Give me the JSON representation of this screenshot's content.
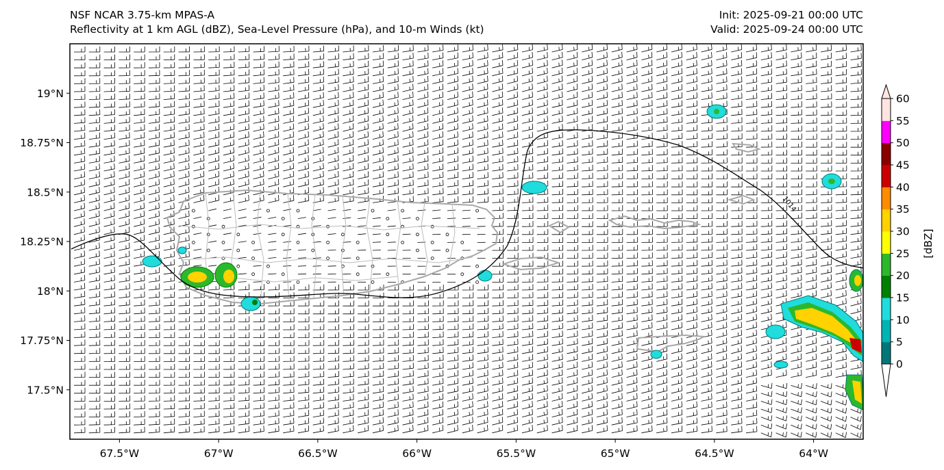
{
  "header": {
    "model": "NSF NCAR 3.75-km MPAS-A",
    "fields": "Reflectivity at 1 km AGL (dBZ), Sea-Level Pressure (hPa), and 10-m Winds (kt)",
    "init": "Init: 2025-09-21 00:00 UTC",
    "valid": "Valid: 2025-09-24 00:00 UTC"
  },
  "map": {
    "extent": {
      "lon_min": -67.75,
      "lon_max": -63.75,
      "lat_min": 17.25,
      "lat_max": 19.25
    },
    "lat_ticks": [
      {
        "value": 19.0,
        "label": "19°N"
      },
      {
        "value": 18.75,
        "label": "18.75°N"
      },
      {
        "value": 18.5,
        "label": "18.5°N"
      },
      {
        "value": 18.25,
        "label": "18.25°N"
      },
      {
        "value": 18.0,
        "label": "18°N"
      },
      {
        "value": 17.75,
        "label": "17.75°N"
      },
      {
        "value": 17.5,
        "label": "17.5°N"
      }
    ],
    "lon_ticks": [
      {
        "value": -67.5,
        "label": "67.5°W"
      },
      {
        "value": -67.0,
        "label": "67°W"
      },
      {
        "value": -66.5,
        "label": "66.5°W"
      },
      {
        "value": -66.0,
        "label": "66°W"
      },
      {
        "value": -65.5,
        "label": "65.5°W"
      },
      {
        "value": -65.0,
        "label": "65°W"
      },
      {
        "value": -64.5,
        "label": "64.5°W"
      },
      {
        "value": -64.0,
        "label": "64°W"
      }
    ],
    "isobar_label": "1014",
    "colorbar": {
      "label": "[dBZ]",
      "ticks": [
        "0",
        "5",
        "10",
        "15",
        "20",
        "25",
        "30",
        "35",
        "40",
        "45",
        "50",
        "55",
        "60"
      ],
      "colors": [
        "#00787a",
        "#00b4b4",
        "#20dcdc",
        "#008000",
        "#2cb82c",
        "#ffff00",
        "#ffd200",
        "#ff8c00",
        "#cc0000",
        "#8b0000",
        "#ff00ff",
        "#ffe4e1"
      ]
    }
  }
}
